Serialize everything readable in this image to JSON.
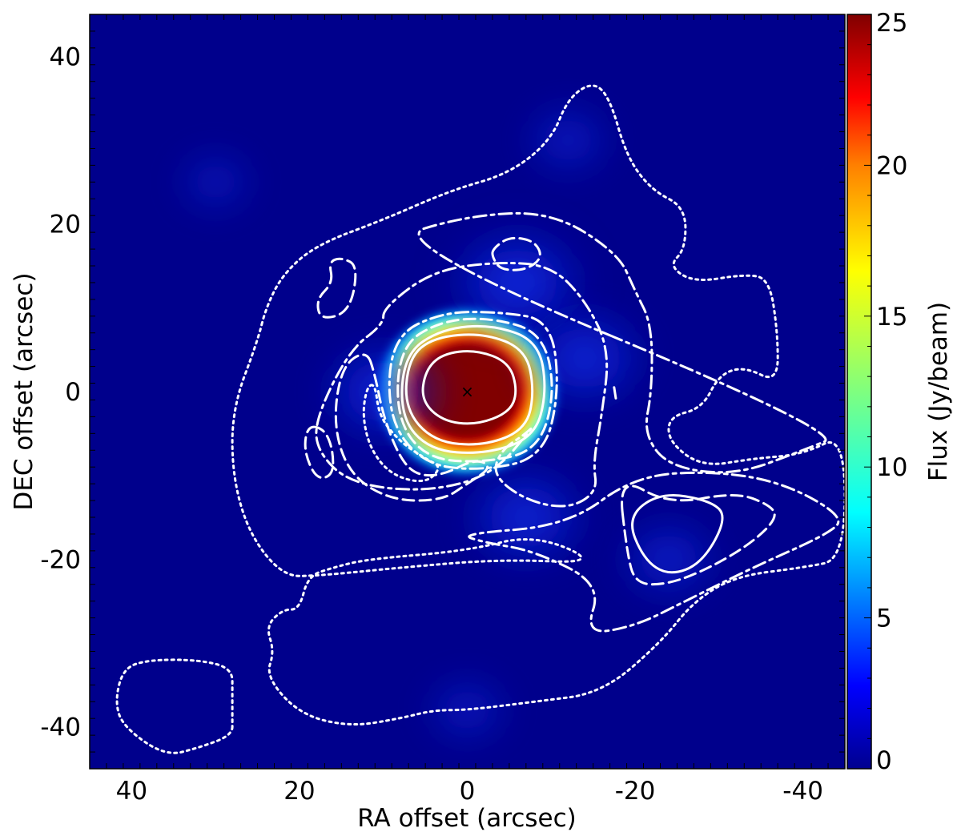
{
  "chart_data": {
    "type": "heatmap",
    "title": "",
    "xlabel": "RA offset (arcsec)",
    "ylabel": "DEC offset (arcsec)",
    "xlim": [
      45,
      -45
    ],
    "ylim": [
      -45,
      45
    ],
    "x_ticks": [
      40,
      20,
      0,
      -20,
      -40
    ],
    "x_tick_labels": [
      "40",
      "20",
      "0",
      "-20",
      "-40"
    ],
    "y_ticks": [
      40,
      20,
      0,
      -20,
      -40
    ],
    "y_tick_labels": [
      "40",
      "20",
      "0",
      "-20",
      "-40"
    ],
    "grid": false,
    "colormap": "jet",
    "background_color": "#00008c",
    "contour_color": "#ffffff",
    "colorbar": {
      "label": "Flux (Jy/beam)",
      "range": [
        0,
        25
      ],
      "ticks": [
        0,
        5,
        10,
        15,
        20,
        25
      ],
      "tick_labels": [
        "0",
        "5",
        "10",
        "15",
        "20",
        "25"
      ]
    },
    "marker": {
      "symbol": "×",
      "x": 0,
      "y": 0
    },
    "emission_components": [
      {
        "id": "core",
        "x": 0,
        "y": 0,
        "peak": 25
      },
      {
        "id": "ring-north",
        "x": -6,
        "y": 13,
        "peak": 4
      },
      {
        "id": "ring-east",
        "x": 10,
        "y": 0,
        "peak": 3.5
      },
      {
        "id": "ring-west",
        "x": -14,
        "y": 4,
        "peak": 3.5
      },
      {
        "id": "arm-southwest",
        "x": -7,
        "y": -15,
        "peak": 3.5
      },
      {
        "id": "clump-north",
        "x": -12,
        "y": 30,
        "peak": 2
      },
      {
        "id": "clump-southwest",
        "x": -24,
        "y": -20,
        "peak": 2.5
      },
      {
        "id": "clump-northeast",
        "x": 30,
        "y": 25,
        "peak": 1.5
      },
      {
        "id": "clump-south",
        "x": 0,
        "y": -38,
        "peak": 1.8
      }
    ],
    "contours": [
      {
        "id": "core-inner",
        "style": "solid",
        "points": [
          [
            5,
            2.5
          ],
          [
            3,
            4.5
          ],
          [
            -1,
            5
          ],
          [
            -5,
            3.5
          ],
          [
            -6,
            0
          ],
          [
            -5,
            -2.5
          ],
          [
            -1,
            -4
          ],
          [
            3,
            -3.5
          ],
          [
            5.5,
            -1
          ]
        ]
      },
      {
        "id": "core-mid",
        "style": "solid",
        "points": [
          [
            7,
            4
          ],
          [
            4,
            6.5
          ],
          [
            -2,
            7
          ],
          [
            -7,
            5
          ],
          [
            -8,
            0
          ],
          [
            -7,
            -4.5
          ],
          [
            -2,
            -6.5
          ],
          [
            4,
            -6
          ],
          [
            7.5,
            -2
          ]
        ]
      },
      {
        "id": "core-outer",
        "style": "solid",
        "points": [
          [
            7.5,
            4.5
          ],
          [
            3,
            7.5
          ],
          [
            -3,
            8
          ],
          [
            -8.5,
            6
          ],
          [
            -9.5,
            0
          ],
          [
            -8,
            -5.5
          ],
          [
            -2,
            -7.5
          ],
          [
            4.5,
            -7
          ],
          [
            8,
            -3
          ]
        ]
      },
      {
        "id": "core-dashed",
        "style": "dashed",
        "points": [
          [
            8,
            5.5
          ],
          [
            3,
            8.5
          ],
          [
            -3,
            8.8
          ],
          [
            -9,
            7
          ],
          [
            -10.5,
            0
          ],
          [
            -8.5,
            -7
          ],
          [
            -2,
            -8.5
          ],
          [
            5,
            -8
          ],
          [
            8.5,
            -3
          ]
        ]
      },
      {
        "id": "core-dashdot",
        "style": "dashdot",
        "points": [
          [
            9,
            6.5
          ],
          [
            3,
            9.5
          ],
          [
            -4,
            9.5
          ],
          [
            -10,
            8.5
          ],
          [
            -11,
            0
          ],
          [
            -9,
            -8
          ],
          [
            -1,
            -9.5
          ],
          [
            5.5,
            -8.5
          ],
          [
            9.5,
            -3
          ]
        ]
      },
      {
        "id": "ring-dashdot",
        "style": "dashdot",
        "points": [
          [
            10,
            10
          ],
          [
            4,
            14.5
          ],
          [
            -4,
            15.5
          ],
          [
            -10,
            15
          ],
          [
            -14,
            11
          ],
          [
            -17,
            5
          ],
          [
            -16,
            -3
          ],
          [
            -15,
            -8.5
          ],
          [
            -15.5,
            -12
          ],
          [
            -12,
            -14
          ],
          [
            -7,
            -13
          ],
          [
            -3,
            -10
          ],
          [
            -4,
            -7
          ],
          [
            -7,
            -5
          ],
          [
            -8,
            -4
          ],
          [
            -3,
            -10
          ],
          [
            5,
            -12
          ],
          [
            14,
            -11
          ],
          [
            18,
            -7
          ],
          [
            18,
            -3
          ],
          [
            14,
            5
          ],
          [
            10,
            8
          ]
        ]
      },
      {
        "id": "ring-dashed-east",
        "style": "dashed",
        "points": [
          [
            12,
            5
          ],
          [
            15,
            3
          ],
          [
            16,
            -4
          ],
          [
            14,
            -10
          ],
          [
            9,
            -13
          ],
          [
            3,
            -13
          ],
          [
            0,
            -11
          ],
          [
            -3,
            -9
          ],
          [
            -1,
            -8
          ],
          [
            3,
            -10
          ],
          [
            6,
            -10
          ],
          [
            8,
            -8
          ],
          [
            10,
            -3
          ],
          [
            11,
            2
          ]
        ]
      },
      {
        "id": "ring-dotted-inner",
        "style": "dotted",
        "points": [
          [
            11,
            1
          ],
          [
            10.5,
            -3
          ],
          [
            8,
            -6
          ],
          [
            5,
            -8
          ],
          [
            3,
            -9
          ],
          [
            5,
            -11
          ],
          [
            9,
            -10
          ],
          [
            11.5,
            -7
          ],
          [
            12.5,
            -3
          ],
          [
            12,
            0.5
          ]
        ]
      },
      {
        "id": "blob-north",
        "style": "dashed",
        "points": [
          [
            -3,
            17
          ],
          [
            -5,
            18.5
          ],
          [
            -8,
            18
          ],
          [
            -9,
            16
          ],
          [
            -7,
            14.5
          ],
          [
            -4,
            14.5
          ],
          [
            -3,
            16
          ]
        ]
      },
      {
        "id": "blob-northeast",
        "style": "dashed",
        "points": [
          [
            16,
            13
          ],
          [
            18,
            11
          ],
          [
            17.5,
            8.5
          ],
          [
            14,
            9.5
          ],
          [
            13,
            15
          ],
          [
            15,
            16
          ],
          [
            16.5,
            15.5
          ]
        ]
      },
      {
        "id": "blob-east",
        "style": "dashed",
        "points": [
          [
            19,
            -4
          ],
          [
            19.5,
            -7
          ],
          [
            18,
            -10.5
          ],
          [
            16,
            -10
          ],
          [
            16,
            -7
          ],
          [
            17,
            -4.5
          ]
        ]
      },
      {
        "id": "blob-tiny",
        "style": "solid",
        "points": [
          [
            -17.5,
            0.5
          ],
          [
            -17.7,
            -0.8
          ]
        ]
      },
      {
        "id": "southwest-solid",
        "style": "solid",
        "points": [
          [
            -19,
            -15
          ],
          [
            -23,
            -12
          ],
          [
            -29,
            -13
          ],
          [
            -31,
            -15
          ],
          [
            -28,
            -20.5
          ],
          [
            -24,
            -22
          ],
          [
            -21,
            -20
          ]
        ]
      },
      {
        "id": "southwest-dashed",
        "style": "dashed",
        "points": [
          [
            -18,
            -10
          ],
          [
            -24,
            -13.5
          ],
          [
            -32,
            -12
          ],
          [
            -36,
            -13.5
          ],
          [
            -37,
            -15
          ],
          [
            -34,
            -18
          ],
          [
            -29,
            -21
          ],
          [
            -24,
            -23
          ],
          [
            -20,
            -23
          ],
          [
            -19,
            -19
          ]
        ]
      },
      {
        "id": "southwest-dashdot",
        "style": "dashdot",
        "points": [
          [
            -12,
            -16
          ],
          [
            -20,
            -10
          ],
          [
            -30,
            -9.5
          ],
          [
            -38,
            -11
          ],
          [
            -45,
            -15
          ],
          [
            -43,
            -17
          ],
          [
            -34,
            -21
          ],
          [
            -26,
            -25
          ],
          [
            -20,
            -28
          ],
          [
            -14,
            -29
          ],
          [
            -16,
            -23
          ],
          [
            -8,
            -19
          ],
          [
            -2,
            -18
          ],
          [
            1,
            -17
          ]
        ]
      },
      {
        "id": "ring-dashed-outer",
        "style": "dashdot",
        "points": [
          [
            10,
            18
          ],
          [
            0,
            21
          ],
          [
            -10,
            21.5
          ],
          [
            -18,
            16.5
          ],
          [
            -20,
            12
          ],
          [
            -22,
            8
          ],
          [
            -22,
            0
          ],
          [
            -21,
            -5
          ],
          [
            -24,
            -9
          ],
          [
            -32,
            -10
          ],
          [
            -40,
            -7
          ],
          [
            -45,
            -5
          ]
        ]
      },
      {
        "id": "outer-dotted",
        "style": "dotted",
        "points": [
          [
            24,
            10
          ],
          [
            22,
            14
          ],
          [
            18,
            17.5
          ],
          [
            10,
            20.5
          ],
          [
            2,
            24
          ],
          [
            -5,
            26
          ],
          [
            -10,
            30
          ],
          [
            -12,
            35
          ],
          [
            -15,
            37
          ],
          [
            -17,
            35
          ],
          [
            -19,
            28
          ],
          [
            -22,
            24
          ],
          [
            -26,
            22
          ],
          [
            -26,
            17
          ],
          [
            -24,
            15
          ],
          [
            -27,
            13
          ],
          [
            -33,
            14
          ],
          [
            -36,
            13.5
          ],
          [
            -37,
            7
          ],
          [
            -37,
            1
          ],
          [
            -33,
            3
          ],
          [
            -30,
            2
          ],
          [
            -28,
            -2
          ],
          [
            -24,
            -3
          ],
          [
            -24,
            -6
          ],
          [
            -28,
            -9
          ],
          [
            -34,
            -8
          ],
          [
            -40,
            -7.5
          ],
          [
            -45,
            -5
          ],
          [
            -45,
            -20
          ],
          [
            -40,
            -21
          ],
          [
            -32,
            -22
          ],
          [
            -27,
            -25
          ],
          [
            -23,
            -30
          ],
          [
            -16,
            -36
          ],
          [
            -8,
            -37
          ],
          [
            0,
            -38
          ],
          [
            4,
            -38
          ],
          [
            8,
            -39
          ],
          [
            14,
            -40
          ],
          [
            20,
            -38.5
          ],
          [
            24,
            -34
          ],
          [
            23,
            -31
          ],
          [
            24,
            -28
          ],
          [
            22,
            -26
          ],
          [
            20,
            -26
          ],
          [
            19,
            -22
          ],
          [
            16,
            -21
          ],
          [
            12,
            -20
          ],
          [
            0,
            -19
          ],
          [
            -8,
            -17
          ],
          [
            -16,
            -20.5
          ],
          [
            -4,
            -20
          ],
          [
            8,
            -21
          ],
          [
            18,
            -22
          ],
          [
            22,
            -22
          ],
          [
            26,
            -17
          ],
          [
            28,
            -10
          ],
          [
            28,
            -2
          ],
          [
            25,
            6
          ]
        ]
      },
      {
        "id": "southeast-dotted",
        "style": "dotted",
        "points": [
          [
            28,
            -41
          ],
          [
            32,
            -42.5
          ],
          [
            36,
            -43.5
          ],
          [
            41,
            -40
          ],
          [
            42,
            -37
          ],
          [
            41,
            -33
          ],
          [
            38,
            -32
          ],
          [
            32,
            -32
          ],
          [
            28,
            -33
          ],
          [
            28,
            -36
          ],
          [
            28,
            -39
          ]
        ]
      }
    ]
  }
}
